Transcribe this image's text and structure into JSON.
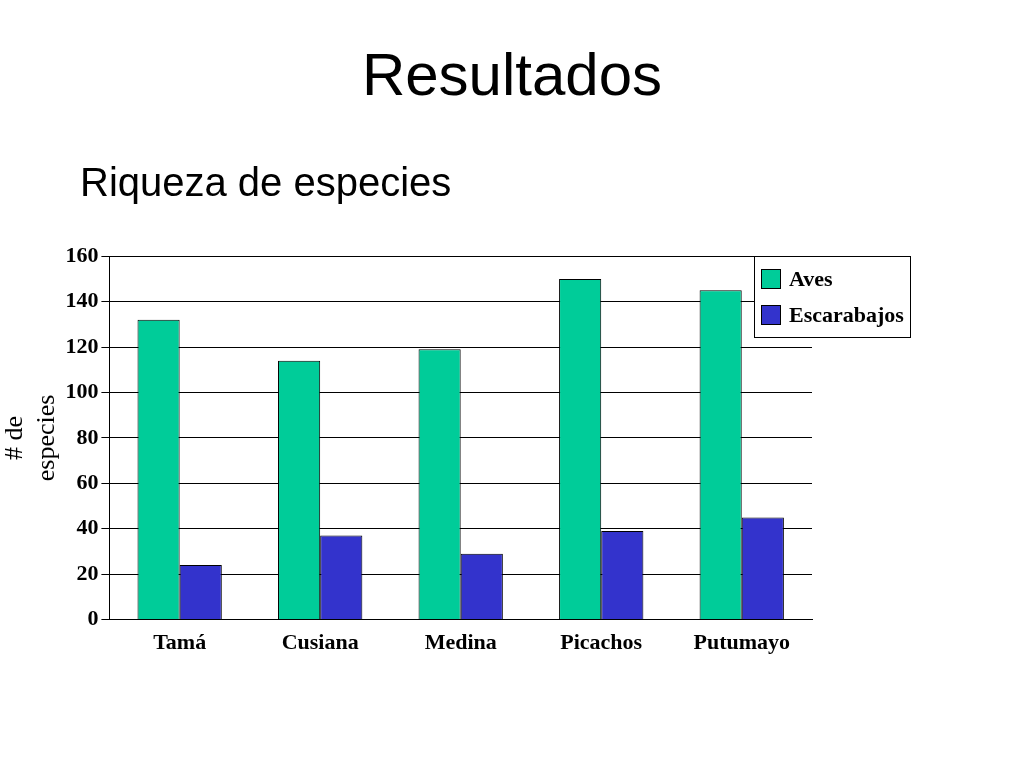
{
  "chart_data": {
    "type": "bar",
    "title": "Resultados",
    "subtitle": "Riqueza de especies",
    "ylabel": "# de especies",
    "categories": [
      "Tamá",
      "Cusiana",
      "Medina",
      "Picachos",
      "Putumayo"
    ],
    "series": [
      {
        "name": "Aves",
        "color": "#00cc99",
        "values": [
          132,
          114,
          119,
          150,
          145
        ]
      },
      {
        "name": "Escarabajos",
        "color": "#3333cc",
        "values": [
          24,
          37,
          29,
          39,
          45
        ]
      }
    ],
    "ylim": [
      0,
      160
    ],
    "yticks": [
      0,
      20,
      40,
      60,
      80,
      100,
      120,
      140,
      160
    ],
    "grid": "y",
    "legend": "top right"
  }
}
